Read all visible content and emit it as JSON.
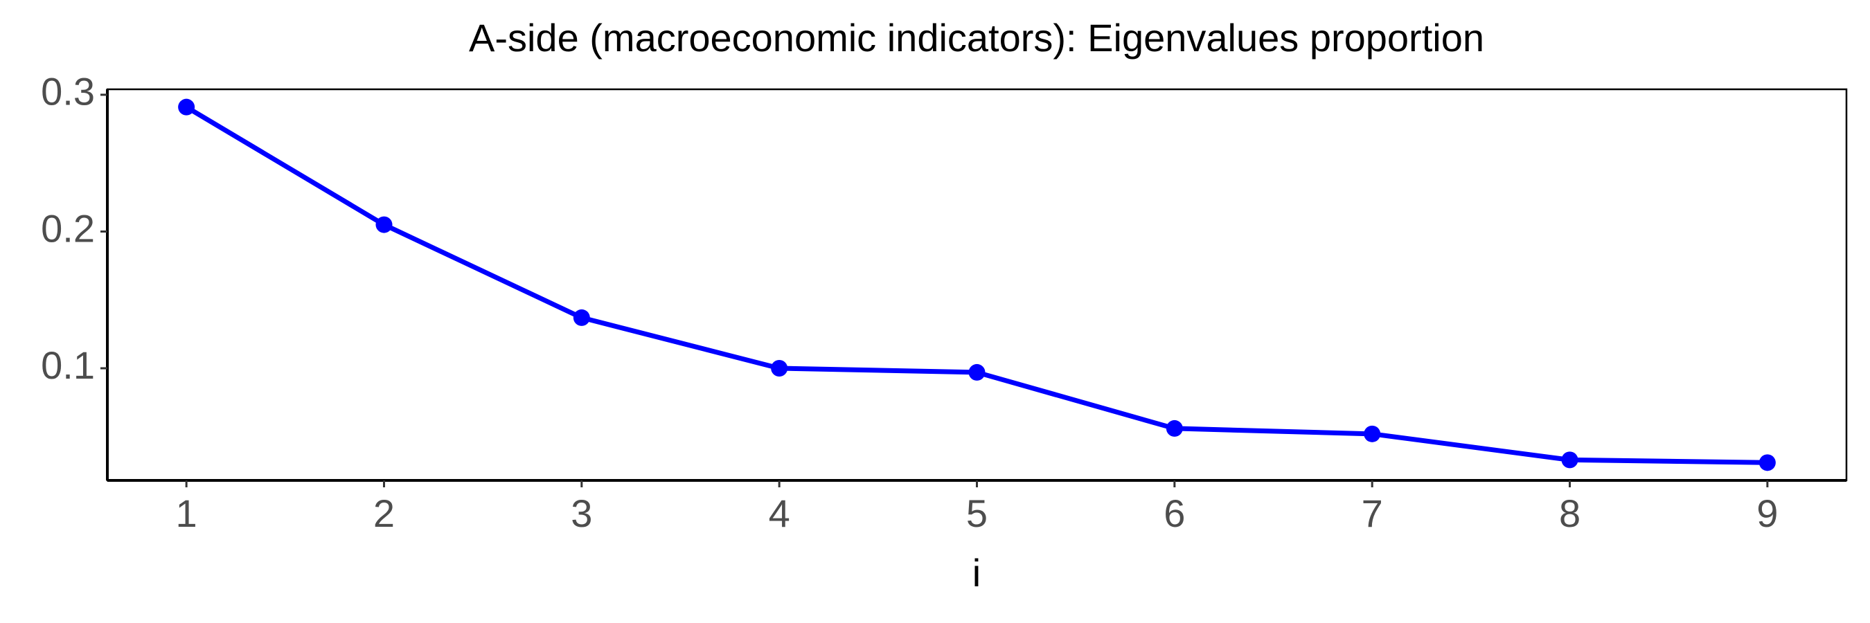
{
  "chart_data": {
    "type": "line",
    "title": "A-side (macroeconomic indicators): Eigenvalues proportion",
    "x_label": "i",
    "x": [
      1,
      2,
      3,
      4,
      5,
      6,
      7,
      8,
      9
    ],
    "series": [
      {
        "name": "Eigenvalues proportion",
        "color": "#0000ff",
        "values": [
          0.291,
          0.205,
          0.137,
          0.1,
          0.097,
          0.056,
          0.052,
          0.033,
          0.031
        ]
      }
    ],
    "xlim": [
      0.6,
      9.4
    ],
    "xticks": [
      1,
      2,
      3,
      4,
      5,
      6,
      7,
      8,
      9
    ],
    "ylim": [
      0.018,
      0.304
    ],
    "yticks": [
      0.1,
      0.2,
      0.3
    ],
    "grid": false,
    "markers": true
  }
}
